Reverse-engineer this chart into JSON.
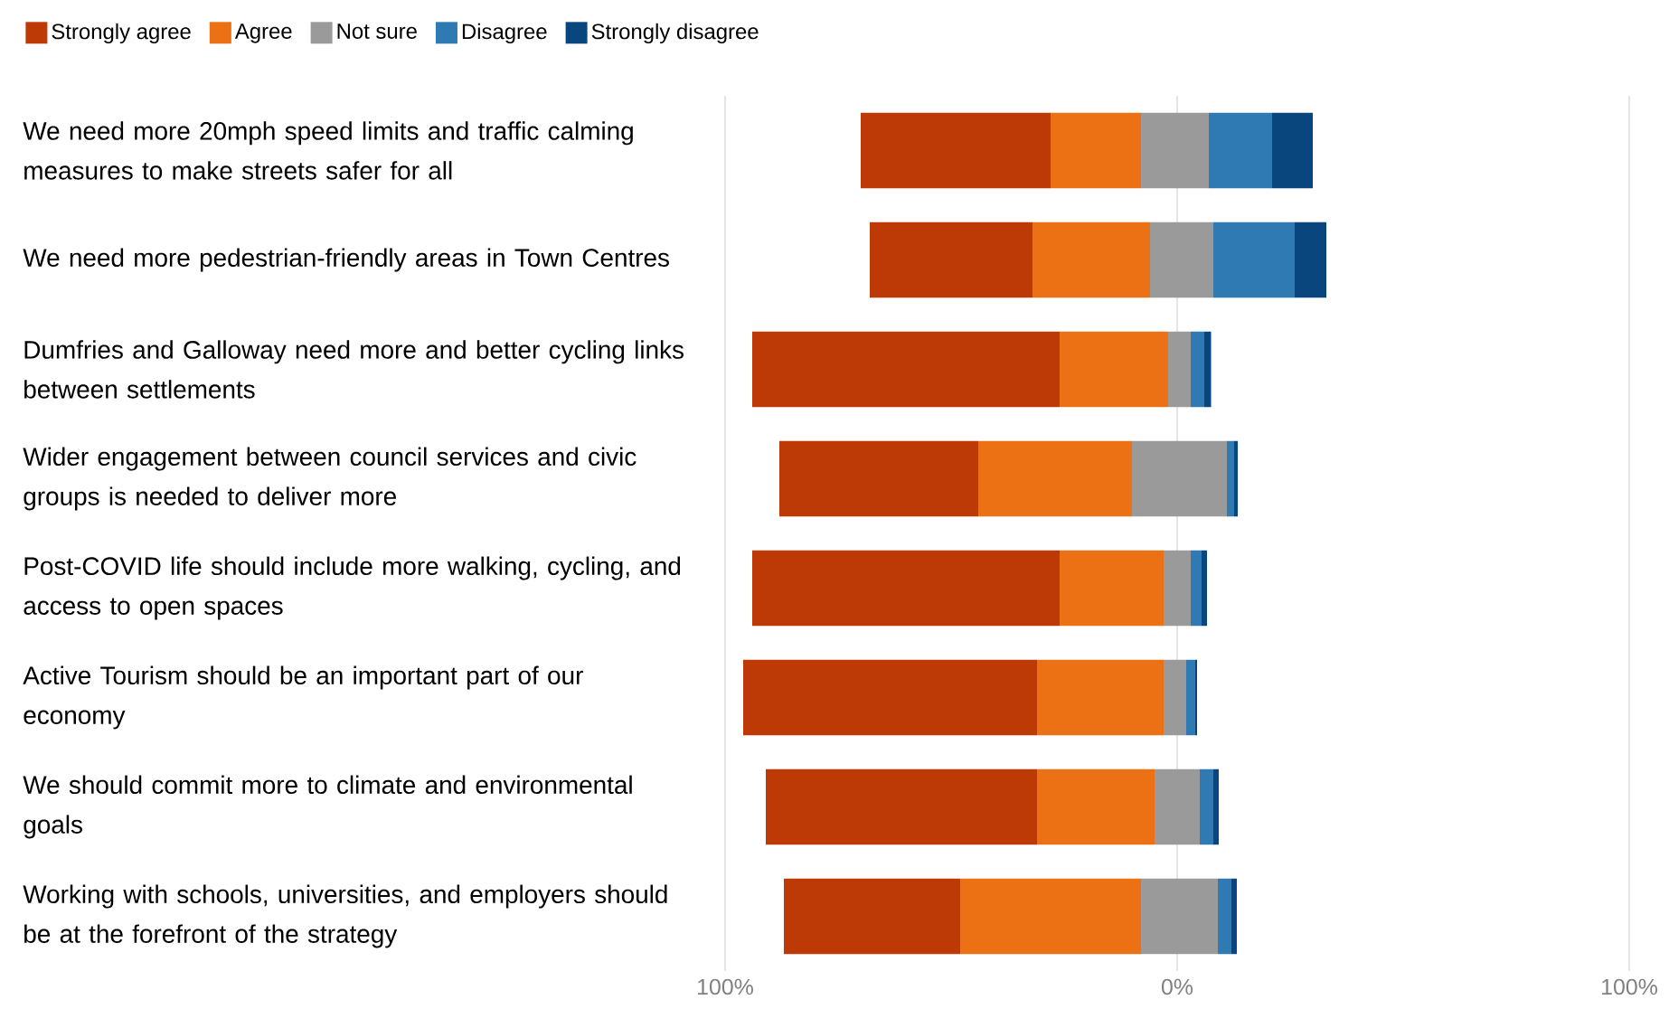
{
  "chart_data": {
    "type": "bar",
    "orientation": "horizontal",
    "categories": [
      "We need more 20mph speed limits and traffic calming measures to make streets safer for all",
      "We need more pedestrian-friendly areas in Town Centres",
      "Dumfries and Galloway need more and better cycling links between settlements",
      "Wider engagement between council services and civic groups is needed to deliver more",
      "Post-COVID life should include more walking, cycling, and access to open spaces",
      "Active Tourism should be an important part of our economy",
      "We should commit more to climate and environmental goals",
      "Working with schools, universities, and employers should be at the forefront of the strategy"
    ],
    "series": [
      {
        "name": "Strongly agree",
        "color": "#bd3a07",
        "base": [
          -70,
          -68,
          -94,
          -88,
          -94,
          -96,
          -91,
          -87
        ],
        "values": [
          42,
          36,
          68,
          44,
          68,
          65,
          60,
          39
        ]
      },
      {
        "name": "Agree",
        "color": "#ec7014",
        "base": [
          -28,
          -32,
          -26,
          -44,
          -26,
          -31,
          -31,
          -48
        ],
        "values": [
          20,
          26,
          24,
          34,
          23,
          28,
          26,
          40
        ]
      },
      {
        "name": "Not sure",
        "color": "#9a9a9a",
        "base": [
          -8,
          -6,
          -2,
          -10,
          -3,
          -3,
          -5,
          -8
        ],
        "values": [
          15,
          14,
          5,
          21,
          6,
          5,
          10,
          17
        ]
      },
      {
        "name": "Disagree",
        "color": "#2f7ab3",
        "base": [
          7,
          8,
          3,
          11,
          3,
          2,
          5,
          9
        ],
        "values": [
          14,
          18,
          3,
          1.6,
          2.4,
          2,
          3,
          3
        ]
      },
      {
        "name": "Strongly disagree",
        "color": "#0a467e",
        "base": [
          21,
          26,
          6,
          12.6,
          5.4,
          4,
          8,
          12
        ],
        "values": [
          9,
          7,
          1.5,
          0.8,
          1.2,
          0.4,
          1.2,
          1.2
        ]
      }
    ],
    "xlim": [
      -100,
      100
    ],
    "xticks": [
      {
        "value": -100,
        "label": "100%"
      },
      {
        "value": 0,
        "label": "0%"
      },
      {
        "value": 100,
        "label": "100%"
      }
    ],
    "grid": "x",
    "legend": "top left"
  }
}
